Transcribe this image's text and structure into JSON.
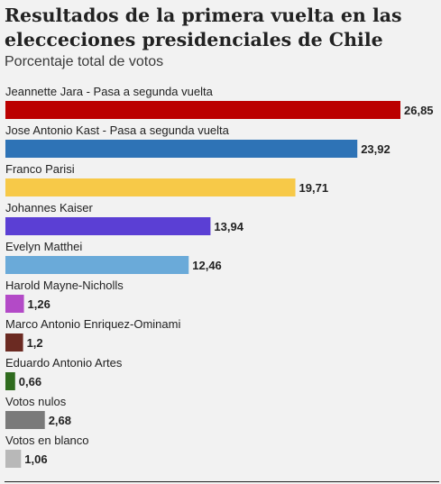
{
  "chart_data": {
    "type": "bar",
    "orientation": "horizontal",
    "title": "Resultados de la primera vuelta en las elecceciones presidenciales de Chile",
    "subtitle": "Porcentaje total de votos",
    "categories": [
      "Jeannette Jara - Pasa a segunda vuelta",
      "Jose Antonio Kast - Pasa a segunda vuelta",
      "Franco Parisi",
      "Johannes Kaiser",
      "Evelyn Matthei",
      "Harold Mayne-Nicholls",
      "Marco Antonio Enriquez-Ominami",
      "Eduardo Antonio Artes",
      "Votos nulos",
      "Votos en blanco"
    ],
    "values": [
      26.85,
      23.92,
      19.71,
      13.94,
      12.46,
      1.26,
      1.2,
      0.66,
      2.68,
      1.06
    ],
    "value_labels": [
      "26,85",
      "23,92",
      "19,71",
      "13,94",
      "12,46",
      "1,26",
      "1,2",
      "0,66",
      "2,68",
      "1,06"
    ],
    "colors": [
      "#bb0000",
      "#2e73b6",
      "#f7c948",
      "#5b3fd4",
      "#6aaad9",
      "#b34ac7",
      "#6b2a22",
      "#2f6b1e",
      "#7a7a7a",
      "#b8b8b8"
    ],
    "xlim": [
      0,
      26.85
    ],
    "grid": false,
    "legend": "none"
  }
}
